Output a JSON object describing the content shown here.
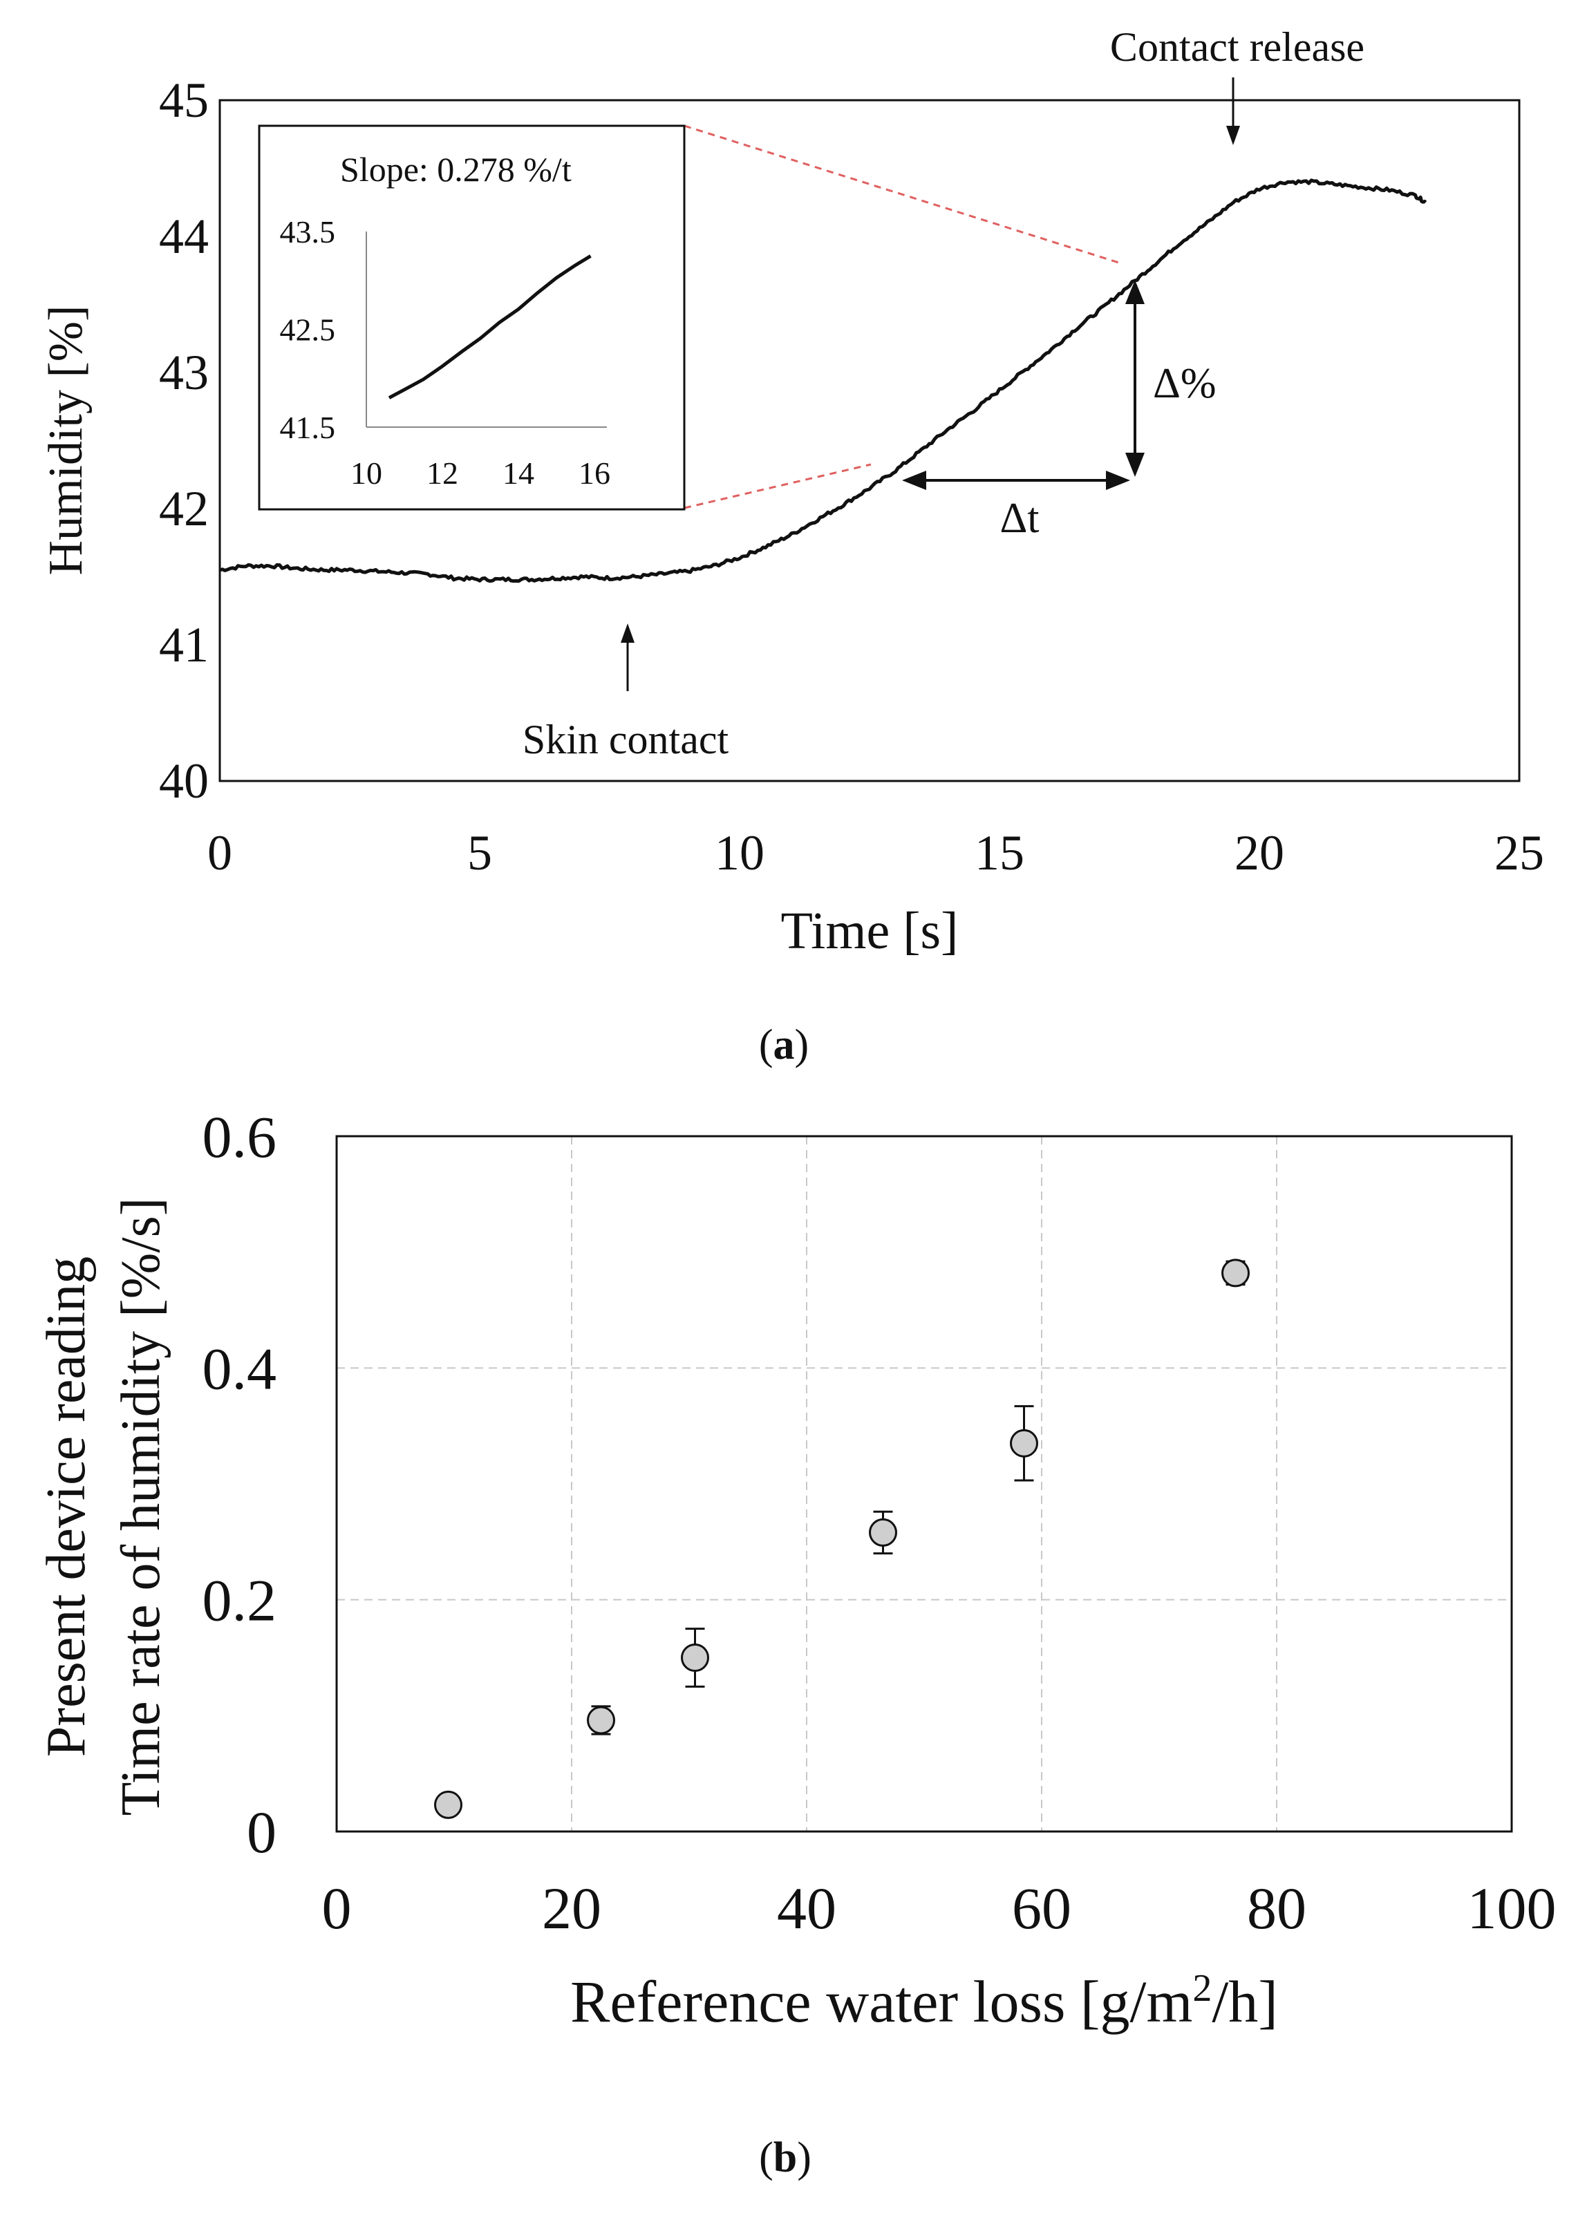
{
  "chart_data": [
    {
      "panel": "a",
      "type": "line",
      "xlabel": "Time [s]",
      "ylabel": "Humidity [%]",
      "xlim": [
        0,
        25
      ],
      "ylim": [
        40,
        45
      ],
      "x_ticks": [
        "0",
        "5",
        "10",
        "15",
        "20",
        "25"
      ],
      "y_ticks": [
        "40",
        "41",
        "42",
        "43",
        "44",
        "45"
      ],
      "series": [
        {
          "name": "humidity",
          "x": [
            0,
            0.5,
            1,
            1.5,
            2,
            2.5,
            3,
            3.5,
            4,
            4.5,
            5,
            5.5,
            6,
            6.5,
            7,
            7.5,
            8,
            8.5,
            9,
            9.5,
            10,
            10.5,
            11,
            11.5,
            12,
            12.5,
            13,
            13.5,
            14,
            14.5,
            15,
            15.5,
            16,
            16.5,
            17,
            17.5,
            18,
            18.5,
            19,
            19.5,
            20,
            20.5,
            21,
            21.5,
            22,
            22.5,
            23,
            23.2
          ],
          "y": [
            41.55,
            41.58,
            41.58,
            41.56,
            41.55,
            41.55,
            41.54,
            41.53,
            41.52,
            41.49,
            41.48,
            41.48,
            41.48,
            41.49,
            41.5,
            41.49,
            41.5,
            41.52,
            41.54,
            41.58,
            41.64,
            41.72,
            41.81,
            41.92,
            42.03,
            42.15,
            42.28,
            42.43,
            42.58,
            42.72,
            42.87,
            43.02,
            43.17,
            43.33,
            43.48,
            43.64,
            43.8,
            43.96,
            44.1,
            44.25,
            44.35,
            44.4,
            44.4,
            44.38,
            44.36,
            44.34,
            44.3,
            44.25
          ]
        }
      ],
      "annotations": {
        "skin_contact": "Skin contact",
        "contact_release": "Contact release",
        "delta_pct": "Δ%",
        "delta_t": "Δt"
      },
      "inset": {
        "title": "Slope: 0.278 %/t",
        "xlim": [
          10,
          16
        ],
        "ylim": [
          41.5,
          43.5
        ],
        "x_ticks": [
          "10",
          "12",
          "14",
          "16"
        ],
        "y_ticks": [
          "43.5",
          "42.5",
          "41.5"
        ],
        "x": [
          10.6,
          11.0,
          11.5,
          12.0,
          12.5,
          13.0,
          13.5,
          14.0,
          14.5,
          15.0,
          15.5,
          15.9
        ],
        "y": [
          41.8,
          41.88,
          42.0,
          42.13,
          42.27,
          42.42,
          42.57,
          42.72,
          42.87,
          43.02,
          43.15,
          43.25
        ]
      }
    },
    {
      "panel": "b",
      "type": "scatter",
      "xlabel": "Reference water loss [g/m²/h]",
      "xlabel_parts": {
        "before": "Reference water loss [g/m",
        "sup": "2",
        "after": "/h]"
      },
      "ylabel_line1": "Present device reading",
      "ylabel_line2": "Time rate of humidity  [%/s]",
      "xlim": [
        0,
        100
      ],
      "ylim": [
        0,
        0.6
      ],
      "x_ticks": [
        "0",
        "20",
        "40",
        "60",
        "80",
        "100"
      ],
      "y_ticks": [
        "0",
        "0.2",
        "0.4",
        "0.6"
      ],
      "grid": true,
      "points": [
        {
          "x": 9.5,
          "y": 0.023,
          "err": 0.005
        },
        {
          "x": 22.5,
          "y": 0.096,
          "err": 0.012
        },
        {
          "x": 30.5,
          "y": 0.15,
          "err": 0.025
        },
        {
          "x": 46.5,
          "y": 0.258,
          "err": 0.018
        },
        {
          "x": 58.5,
          "y": 0.335,
          "err": 0.032
        },
        {
          "x": 76.5,
          "y": 0.482,
          "err": 0.01
        }
      ],
      "marker_color": "#cfcfcf"
    }
  ],
  "panel_labels": {
    "a": "a",
    "b": "b"
  }
}
